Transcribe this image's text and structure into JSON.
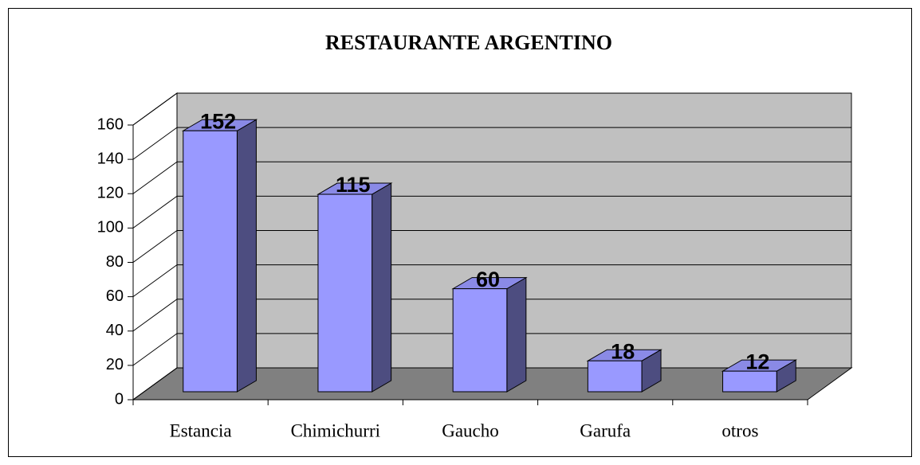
{
  "chart_data": {
    "type": "bar",
    "title": "RESTAURANTE ARGENTINO",
    "categories": [
      "Estancia",
      "Chimichurri",
      "Gaucho",
      "Garufa",
      "otros"
    ],
    "values": [
      152,
      115,
      60,
      18,
      12
    ],
    "color": "#9999ff",
    "ylim": [
      0,
      160
    ],
    "yticks": [
      0,
      20,
      40,
      60,
      80,
      100,
      120,
      140,
      160
    ],
    "grid": true
  }
}
